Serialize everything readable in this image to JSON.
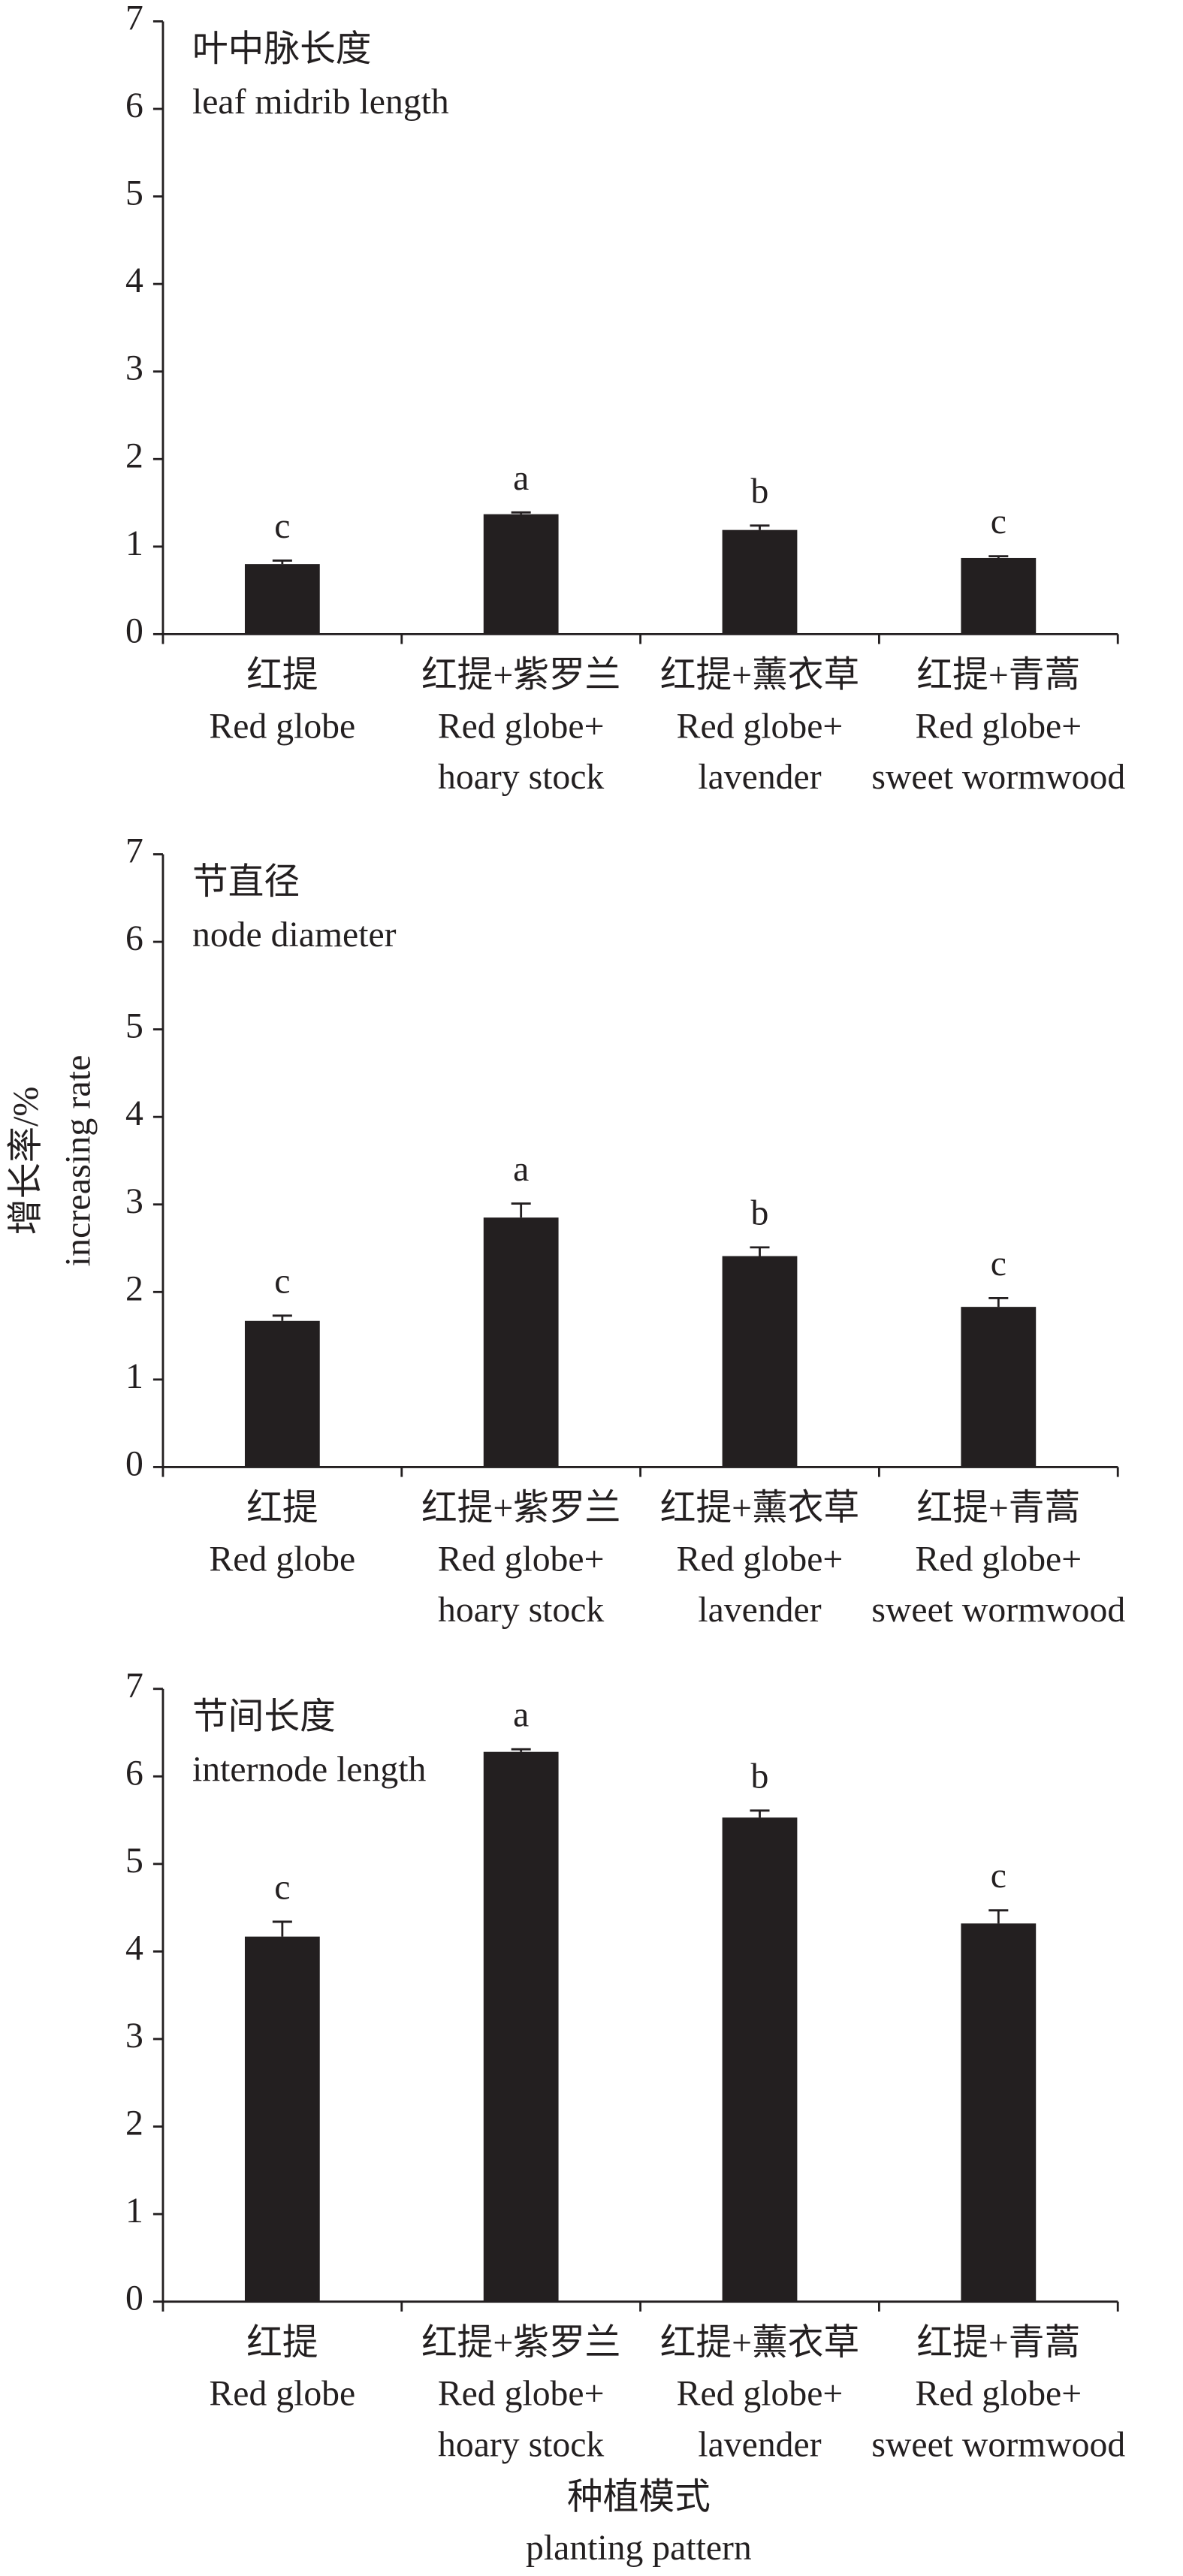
{
  "chart_data": [
    {
      "type": "bar",
      "title": "叶中脉长度",
      "subtitle": "leaf midrib length",
      "categories": [
        [
          "红提",
          "Red globe"
        ],
        [
          "红提+紫罗兰",
          "Red globe+",
          "hoary stock"
        ],
        [
          "红提+薰衣草",
          "Red globe+",
          "lavender"
        ],
        [
          "红提+青蒿",
          "Red globe+",
          "sweet wormwood"
        ]
      ],
      "values": [
        0.8,
        1.37,
        1.19,
        0.87
      ],
      "errors": [
        0.04,
        0.02,
        0.05,
        0.02
      ],
      "annotations": [
        "c",
        "a",
        "b",
        "c"
      ],
      "color": "#231f20",
      "ylim": [
        0,
        7
      ],
      "yticks": [
        0,
        1,
        2,
        3,
        4,
        5,
        6,
        7
      ]
    },
    {
      "type": "bar",
      "title": "节直径",
      "subtitle": "node diameter",
      "ylabel": [
        "增长率/%",
        "increasing rate"
      ],
      "categories": [
        [
          "红提",
          "Red globe"
        ],
        [
          "红提+紫罗兰",
          "Red globe+",
          "hoary stock"
        ],
        [
          "红提+薰衣草",
          "Red globe+",
          "lavender"
        ],
        [
          "红提+青蒿",
          "Red globe+",
          "sweet wormwood"
        ]
      ],
      "values": [
        1.67,
        2.85,
        2.41,
        1.83
      ],
      "errors": [
        0.06,
        0.16,
        0.1,
        0.1
      ],
      "annotations": [
        "c",
        "a",
        "b",
        "c"
      ],
      "color": "#231f20",
      "ylim": [
        0,
        7
      ],
      "yticks": [
        0,
        1,
        2,
        3,
        4,
        5,
        6,
        7
      ]
    },
    {
      "type": "bar",
      "title": "节间长度",
      "subtitle": "internode length",
      "xlabel": [
        "种植模式",
        "planting pattern"
      ],
      "categories": [
        [
          "红提",
          "Red globe"
        ],
        [
          "红提+紫罗兰",
          "Red globe+",
          "hoary stock"
        ],
        [
          "红提+薰衣草",
          "Red globe+",
          "lavender"
        ],
        [
          "红提+青蒿",
          "Red globe+",
          "sweet wormwood"
        ]
      ],
      "values": [
        4.17,
        6.28,
        5.53,
        4.32
      ],
      "errors": [
        0.17,
        0.03,
        0.08,
        0.15
      ],
      "annotations": [
        "c",
        "a",
        "b",
        "c"
      ],
      "color": "#231f20",
      "ylim": [
        0,
        7
      ],
      "yticks": [
        0,
        1,
        2,
        3,
        4,
        5,
        6,
        7
      ]
    }
  ]
}
